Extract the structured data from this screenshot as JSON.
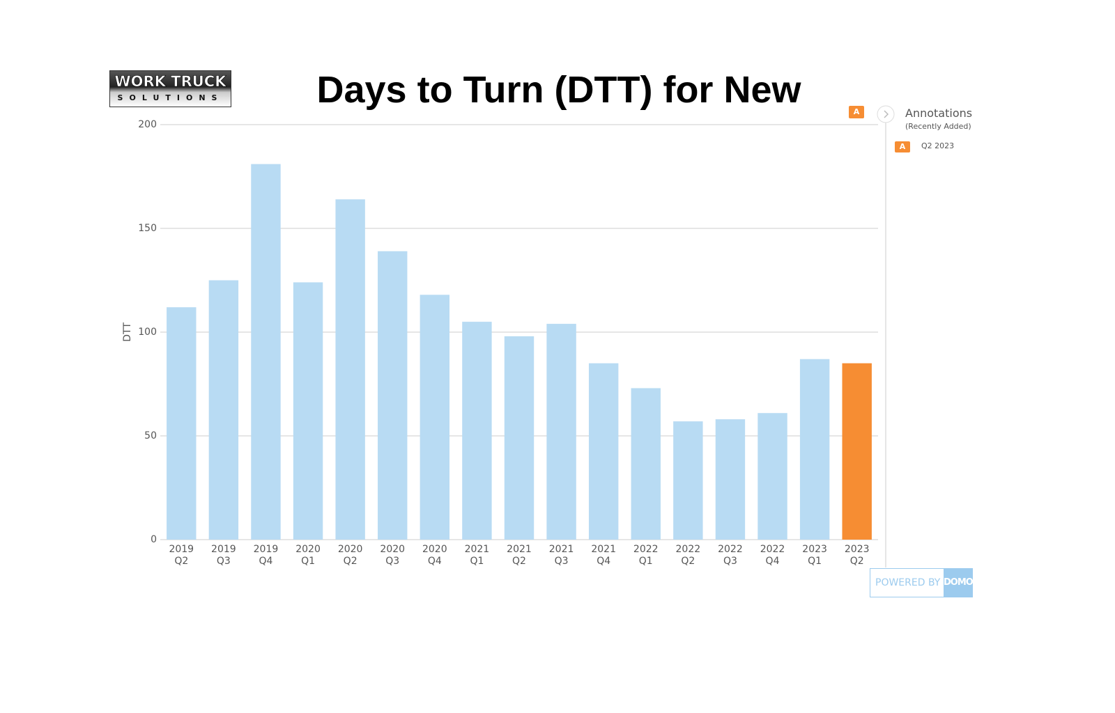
{
  "logo": {
    "line1": "WORK TRUCK",
    "line2": "SOLUTIONS"
  },
  "chart_data": {
    "type": "bar",
    "title": "Days to Turn (DTT) for New",
    "y_label": "DTT",
    "categories": [
      "2019 Q2",
      "2019 Q3",
      "2019 Q4",
      "2020 Q1",
      "2020 Q2",
      "2020 Q3",
      "2020 Q4",
      "2021 Q1",
      "2021 Q2",
      "2021 Q3",
      "2021 Q4",
      "2022 Q1",
      "2022 Q2",
      "2022 Q3",
      "2022 Q4",
      "2023 Q1",
      "2023 Q2"
    ],
    "values": [
      112,
      125,
      181,
      124,
      164,
      139,
      118,
      105,
      98,
      104,
      85,
      73,
      57,
      58,
      61,
      87,
      85
    ],
    "colors": [
      "#b8dbf3",
      "#b8dbf3",
      "#b8dbf3",
      "#b8dbf3",
      "#b8dbf3",
      "#b8dbf3",
      "#b8dbf3",
      "#b8dbf3",
      "#b8dbf3",
      "#b8dbf3",
      "#b8dbf3",
      "#b8dbf3",
      "#b8dbf3",
      "#b8dbf3",
      "#b8dbf3",
      "#b8dbf3",
      "#f68d33"
    ],
    "ylim": [
      0,
      200
    ],
    "yticks": [
      0,
      50,
      100,
      150,
      200
    ],
    "grid": true
  },
  "annotations": {
    "marker": "A",
    "title": "Annotations",
    "subtitle": "(Recently Added)",
    "items": [
      "Q2 2023"
    ]
  },
  "footer": {
    "powered_by": "POWERED BY",
    "brand": "DOMO"
  }
}
